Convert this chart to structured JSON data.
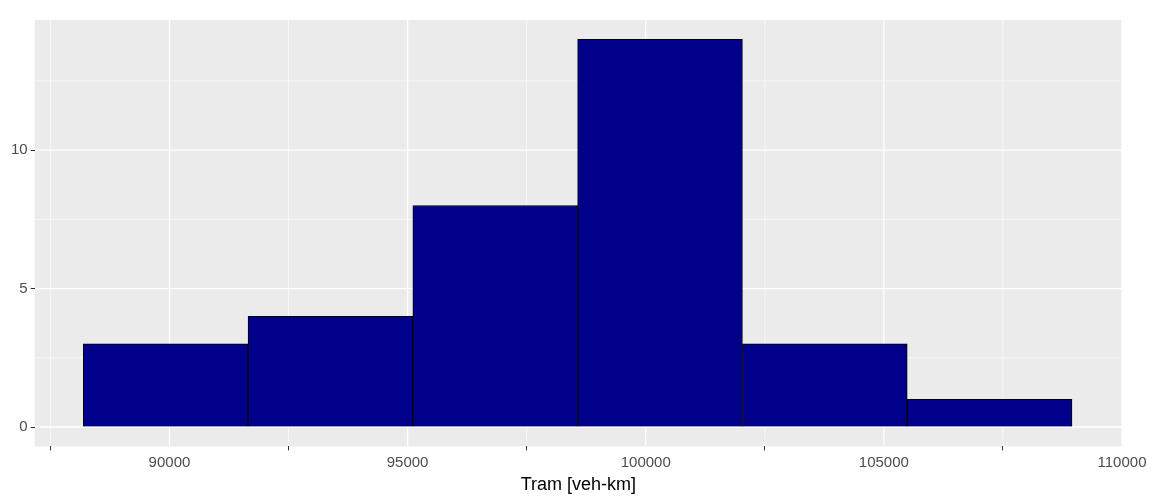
{
  "chart_data": {
    "type": "histogram",
    "xlabel": "Tram [veh-km]",
    "bins": [
      88190,
      91650,
      95110,
      98570,
      102030,
      105490,
      108950
    ],
    "values": [
      3,
      4,
      8,
      14,
      3,
      1
    ],
    "color": "#00008b",
    "xlim": [
      87170,
      110000
    ],
    "xticks": [
      90000,
      95000,
      100000,
      105000,
      110000
    ],
    "ylim": [
      -0.7,
      14.7
    ],
    "yticks": [
      0,
      5,
      10
    ],
    "grid": true,
    "legend": false
  }
}
